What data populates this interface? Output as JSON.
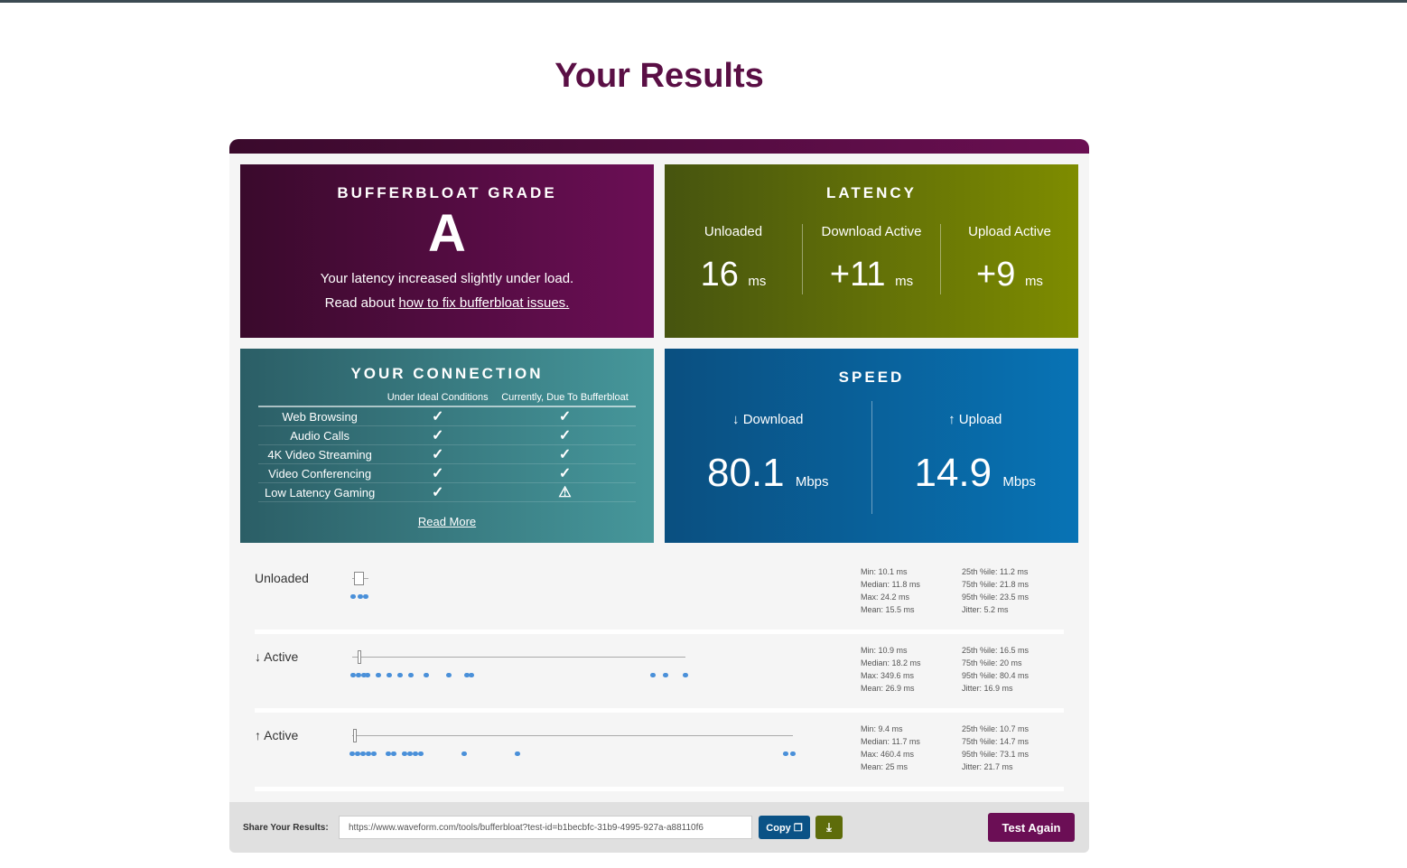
{
  "title": "Your Results",
  "grade": {
    "heading": "BUFFERBLOAT GRADE",
    "value": "A",
    "message": "Your latency increased slightly under load.",
    "read_prefix": "Read about ",
    "link": "how to fix bufferbloat issues."
  },
  "latency": {
    "heading": "LATENCY",
    "cols": [
      {
        "label": "Unloaded",
        "value": "16",
        "unit": "ms"
      },
      {
        "label": "Download Active",
        "value": "+11",
        "unit": "ms"
      },
      {
        "label": "Upload Active",
        "value": "+9",
        "unit": "ms"
      }
    ]
  },
  "connection": {
    "heading": "YOUR CONNECTION",
    "col1": "Under Ideal Conditions",
    "col2": "Currently, Due To Bufferbloat",
    "rows": [
      {
        "name": "Web Browsing",
        "ideal": "✓",
        "current": "✓"
      },
      {
        "name": "Audio Calls",
        "ideal": "✓",
        "current": "✓"
      },
      {
        "name": "4K Video Streaming",
        "ideal": "✓",
        "current": "✓"
      },
      {
        "name": "Video Conferencing",
        "ideal": "✓",
        "current": "✓"
      },
      {
        "name": "Low Latency Gaming",
        "ideal": "✓",
        "current": "⚠"
      }
    ],
    "read_more": "Read More"
  },
  "speed": {
    "heading": "SPEED",
    "download": {
      "label": "↓ Download",
      "value": "80.1",
      "unit": "Mbps"
    },
    "upload": {
      "label": "↑ Upload",
      "value": "14.9",
      "unit": "Mbps"
    }
  },
  "stats": [
    {
      "label": "Unloaded",
      "left": [
        "Min: 10.1 ms",
        "Median: 11.8 ms",
        "Max: 24.2 ms",
        "Mean: 15.5 ms"
      ],
      "right": [
        "25th %ile: 11.2 ms",
        "75th %ile: 21.8 ms",
        "95th %ile: 23.5 ms",
        "Jitter: 5.2 ms"
      ]
    },
    {
      "label": "↓ Active",
      "left": [
        "Min: 10.9 ms",
        "Median: 18.2 ms",
        "Max: 349.6 ms",
        "Mean: 26.9 ms"
      ],
      "right": [
        "25th %ile: 16.5 ms",
        "75th %ile: 20 ms",
        "95th %ile: 80.4 ms",
        "Jitter: 16.9 ms"
      ]
    },
    {
      "label": "↑ Active",
      "left": [
        "Min: 9.4 ms",
        "Median: 11.7 ms",
        "Max: 460.4 ms",
        "Mean: 25 ms"
      ],
      "right": [
        "25th %ile: 10.7 ms",
        "75th %ile: 14.7 ms",
        "95th %ile: 73.1 ms",
        "Jitter: 21.7 ms"
      ]
    }
  ],
  "footer": {
    "share_label": "Share Your Results:",
    "url": "https://www.waveform.com/tools/bufferbloat?test-id=b1becbfc-31b9-4995-927a-a88110f6",
    "copy": "Copy",
    "test_again": "Test Again"
  }
}
